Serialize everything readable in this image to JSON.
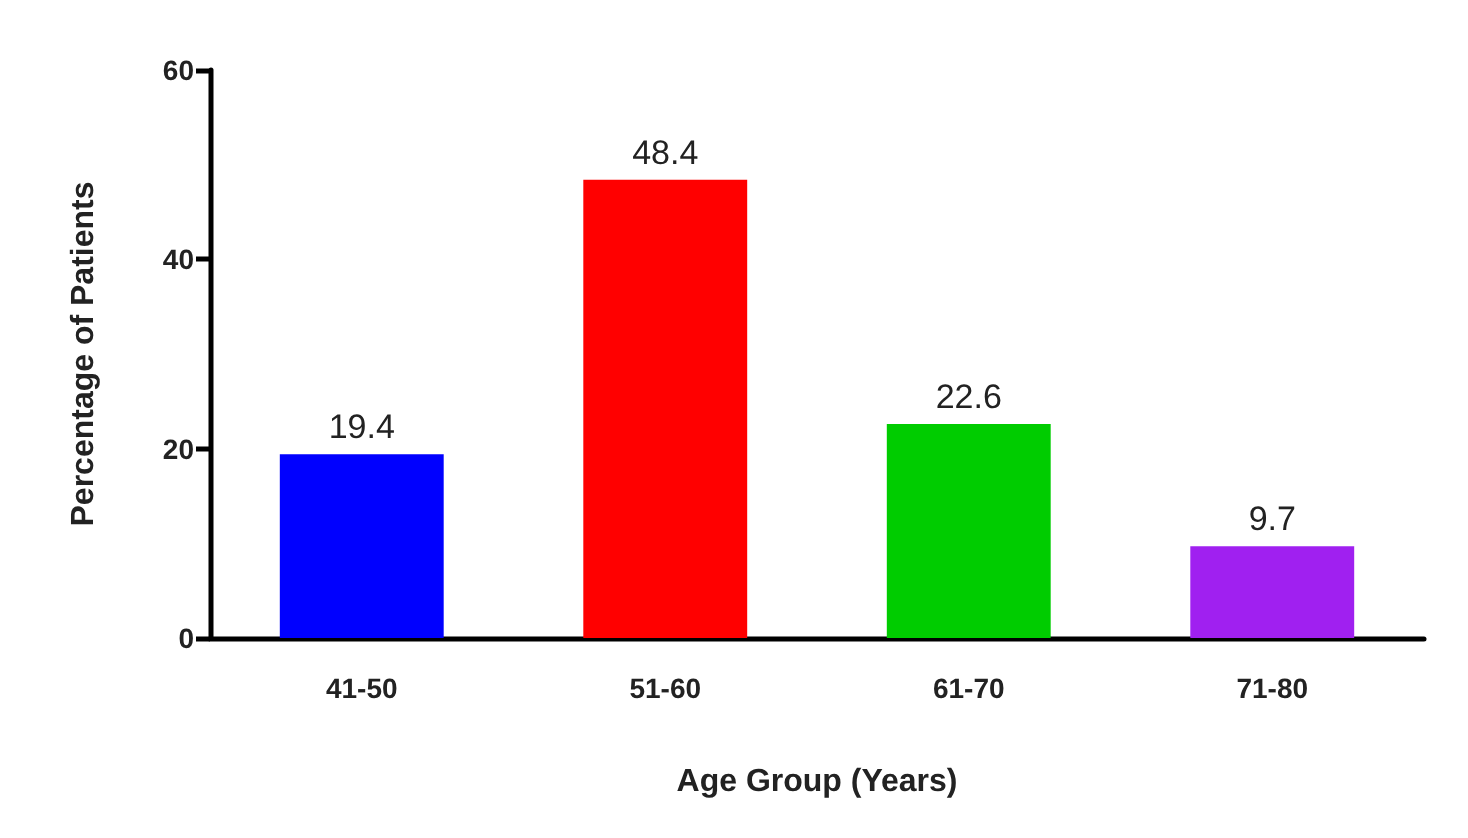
{
  "chart_data": {
    "type": "bar",
    "xlabel": "Age Group (Years)",
    "ylabel": "Percentage of Patients",
    "categories": [
      "41-50",
      "51-60",
      "61-70",
      "71-80"
    ],
    "values": [
      19.4,
      48.4,
      22.6,
      9.7
    ],
    "colors": [
      "#0000ff",
      "#ff0000",
      "#00cc00",
      "#a020f0"
    ],
    "ylim": [
      0,
      60
    ],
    "yticks": [
      0,
      20,
      40,
      60
    ],
    "grid": false,
    "data_labels": true
  }
}
